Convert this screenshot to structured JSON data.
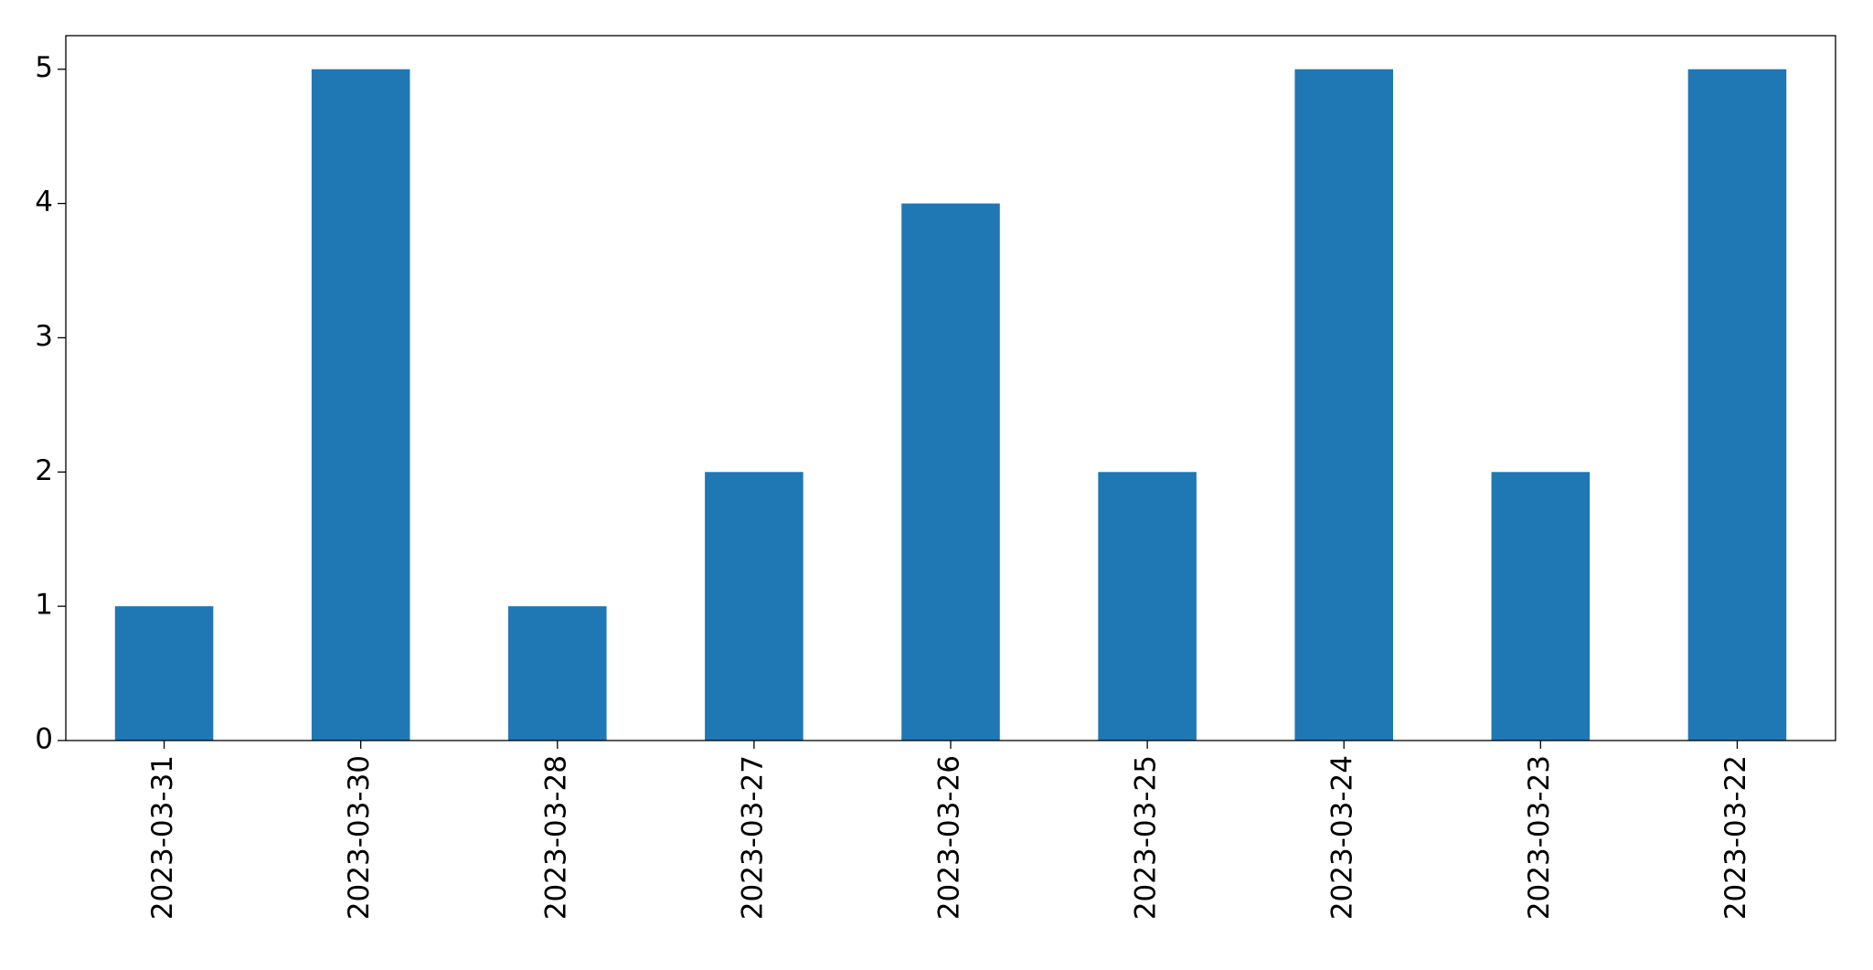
{
  "chart_data": {
    "type": "bar",
    "categories": [
      "2023-03-31",
      "2023-03-30",
      "2023-03-28",
      "2023-03-27",
      "2023-03-26",
      "2023-03-25",
      "2023-03-24",
      "2023-03-23",
      "2023-03-22"
    ],
    "values": [
      1,
      5,
      1,
      2,
      4,
      2,
      5,
      2,
      5
    ],
    "color": "#1f77b4",
    "ylim": [
      0,
      5.25
    ],
    "yticks": [
      0,
      1,
      2,
      3,
      4,
      5
    ],
    "grid": false
  }
}
